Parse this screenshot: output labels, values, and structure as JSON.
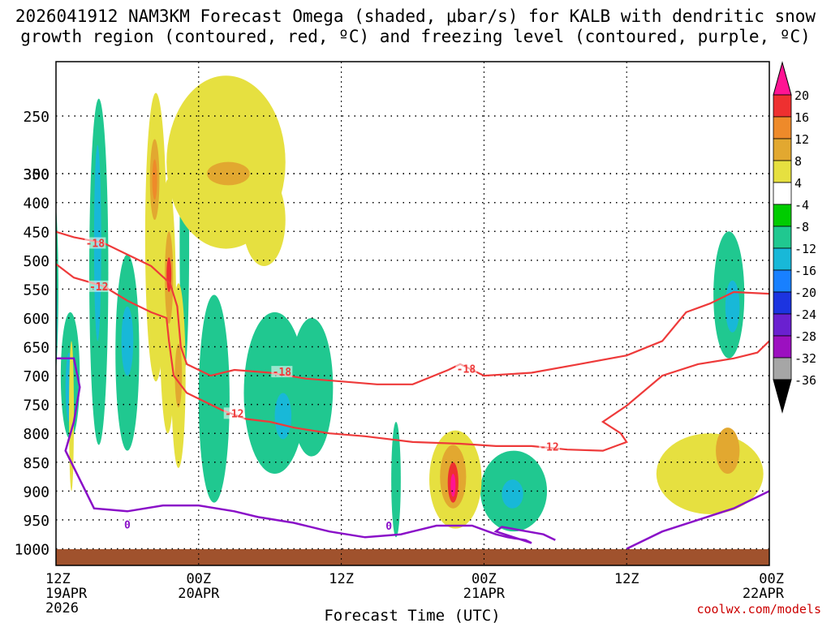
{
  "header": {
    "title_line1": "2026041912 NAM3KM Forecast Omega (shaded, μbar/s) for KALB with dendritic snow",
    "title_line2": "growth region (contoured, red, ºC) and freezing level (contoured, purple, ºC)"
  },
  "credit": "coolwx.com/models",
  "chart_data": {
    "type": "heatmap",
    "title": "2026041912 NAM3KM Forecast Omega (shaded, μbar/s) for KALB with dendritic snow growth region (contoured, red, ºC) and freezing level (contoured, purple, ºC)",
    "xlabel": "Forecast Time (UTC)",
    "ylabel": "",
    "x_ticks": [
      {
        "label": "12Z",
        "sub": "19APR",
        "sub2": "2026",
        "hours": 0
      },
      {
        "label": "00Z",
        "sub": "20APR",
        "sub2": "",
        "hours": 12
      },
      {
        "label": "12Z",
        "sub": "",
        "sub2": "",
        "hours": 24
      },
      {
        "label": "00Z",
        "sub": "21APR",
        "sub2": "",
        "hours": 36
      },
      {
        "label": "12Z",
        "sub": "",
        "sub2": "",
        "hours": 48
      },
      {
        "label": "00Z",
        "sub": "22APR",
        "sub2": "",
        "hours": 60
      }
    ],
    "y_ticks": [
      250,
      300,
      350,
      400,
      450,
      500,
      550,
      600,
      650,
      700,
      750,
      800,
      850,
      900,
      950,
      1000
    ],
    "grid": true,
    "colorbar": {
      "labels": [
        "20",
        "16",
        "12",
        "8",
        "4",
        "-4",
        "-8",
        "-12",
        "-16",
        "-20",
        "-24",
        "-28",
        "-32",
        "-36"
      ],
      "colors": [
        "#ff1493",
        "#ee3030",
        "#ee8a2a",
        "#e2a830",
        "#e6e040",
        "#ffffff",
        "#00cc00",
        "#20c890",
        "#18b8d8",
        "#1880ff",
        "#1c34e0",
        "#6a20d0",
        "#9c10c0",
        "#a6a6a6",
        "#000000"
      ]
    },
    "contour_labels": {
      "dgz": [
        "-18",
        "-12",
        "-18",
        "-12",
        "-18",
        "-12"
      ],
      "freezing": [
        "0",
        "0"
      ]
    },
    "regions": [
      {
        "level": 7,
        "center": [
          -0.3,
          550
        ],
        "radius": [
          0.5,
          180
        ]
      },
      {
        "level": 8,
        "center": [
          -0.2,
          600
        ],
        "radius": [
          0.3,
          120
        ]
      },
      {
        "level": 7,
        "center": [
          1.2,
          700
        ],
        "radius": [
          0.8,
          110
        ]
      },
      {
        "level": 8,
        "center": [
          1.1,
          720
        ],
        "radius": [
          0.3,
          60
        ]
      },
      {
        "level": 4,
        "center": [
          1.3,
          770
        ],
        "radius": [
          0.2,
          130
        ]
      },
      {
        "level": 7,
        "center": [
          3.6,
          520
        ],
        "radius": [
          0.8,
          300
        ]
      },
      {
        "level": 8,
        "center": [
          3.5,
          470
        ],
        "radius": [
          0.3,
          170
        ]
      },
      {
        "level": 7,
        "center": [
          6.0,
          660
        ],
        "radius": [
          1.0,
          170
        ]
      },
      {
        "level": 8,
        "center": [
          6.0,
          640
        ],
        "radius": [
          0.5,
          60
        ]
      },
      {
        "level": 4,
        "center": [
          8.4,
          460
        ],
        "radius": [
          0.9,
          250
        ]
      },
      {
        "level": 3,
        "center": [
          8.3,
          360
        ],
        "radius": [
          0.4,
          70
        ]
      },
      {
        "level": 2,
        "center": [
          8.3,
          360
        ],
        "radius": [
          0.2,
          35
        ]
      },
      {
        "level": 4,
        "center": [
          9.4,
          580
        ],
        "radius": [
          0.7,
          220
        ]
      },
      {
        "level": 3,
        "center": [
          9.5,
          530
        ],
        "radius": [
          0.35,
          80
        ]
      },
      {
        "level": 1,
        "center": [
          9.5,
          525
        ],
        "radius": [
          0.18,
          30
        ]
      },
      {
        "level": 4,
        "center": [
          10.3,
          700
        ],
        "radius": [
          0.6,
          160
        ]
      },
      {
        "level": 3,
        "center": [
          10.3,
          700
        ],
        "radius": [
          0.3,
          55
        ]
      },
      {
        "level": 7,
        "center": [
          10.8,
          470
        ],
        "radius": [
          0.4,
          220
        ]
      },
      {
        "level": 4,
        "center": [
          14.3,
          330
        ],
        "radius": [
          5.0,
          150
        ]
      },
      {
        "level": 3,
        "center": [
          14.5,
          300
        ],
        "radius": [
          1.8,
          70
        ]
      },
      {
        "level": 4,
        "center": [
          17.5,
          430
        ],
        "radius": [
          1.8,
          80
        ]
      },
      {
        "level": 7,
        "center": [
          13.3,
          740
        ],
        "radius": [
          1.3,
          180
        ]
      },
      {
        "level": 7,
        "center": [
          18.4,
          730
        ],
        "radius": [
          2.6,
          140
        ]
      },
      {
        "level": 8,
        "center": [
          19.1,
          770
        ],
        "radius": [
          0.7,
          40
        ]
      },
      {
        "level": 7,
        "center": [
          21.5,
          720
        ],
        "radius": [
          1.8,
          120
        ]
      },
      {
        "level": 7,
        "center": [
          28.6,
          880
        ],
        "radius": [
          0.4,
          100
        ]
      },
      {
        "level": 4,
        "center": [
          33.6,
          880
        ],
        "radius": [
          2.2,
          85
        ]
      },
      {
        "level": 3,
        "center": [
          33.4,
          875
        ],
        "radius": [
          1.1,
          55
        ]
      },
      {
        "level": 1,
        "center": [
          33.4,
          885
        ],
        "radius": [
          0.45,
          35
        ]
      },
      {
        "level": 0,
        "center": [
          33.4,
          890
        ],
        "radius": [
          0.15,
          20
        ]
      },
      {
        "level": 7,
        "center": [
          38.5,
          900
        ],
        "radius": [
          2.8,
          70
        ]
      },
      {
        "level": 8,
        "center": [
          38.4,
          905
        ],
        "radius": [
          0.9,
          25
        ]
      },
      {
        "level": 4,
        "center": [
          55.0,
          870
        ],
        "radius": [
          4.5,
          70
        ]
      },
      {
        "level": 3,
        "center": [
          56.5,
          830
        ],
        "radius": [
          1.0,
          40
        ]
      },
      {
        "level": 7,
        "center": [
          56.6,
          560
        ],
        "radius": [
          1.3,
          110
        ]
      },
      {
        "level": 8,
        "center": [
          56.9,
          580
        ],
        "radius": [
          0.6,
          45
        ]
      }
    ],
    "dgz_lines": [
      [
        [
          -0.1,
          450
        ],
        [
          1.5,
          460
        ],
        [
          4,
          470
        ],
        [
          6,
          490
        ],
        [
          8,
          510
        ],
        [
          9.6,
          540
        ],
        [
          10.2,
          580
        ],
        [
          10.5,
          650
        ],
        [
          11,
          680
        ],
        [
          13,
          700
        ],
        [
          15,
          690
        ],
        [
          18,
          695
        ],
        [
          21,
          705
        ],
        [
          24,
          710
        ],
        [
          27,
          715
        ],
        [
          30,
          715
        ],
        [
          33,
          690
        ],
        [
          34,
          680
        ],
        [
          36,
          700
        ],
        [
          40,
          695
        ],
        [
          44,
          680
        ],
        [
          48,
          665
        ],
        [
          51,
          640
        ],
        [
          53,
          590
        ],
        [
          55,
          575
        ],
        [
          57,
          555
        ],
        [
          60,
          558
        ]
      ],
      [
        [
          -0.1,
          505
        ],
        [
          1.5,
          530
        ],
        [
          4,
          545
        ],
        [
          6,
          570
        ],
        [
          8,
          590
        ],
        [
          9.3,
          600
        ],
        [
          9.5,
          640
        ],
        [
          9.9,
          700
        ],
        [
          11,
          730
        ],
        [
          14,
          760
        ],
        [
          16,
          775
        ],
        [
          18,
          780
        ],
        [
          20,
          790
        ],
        [
          23,
          800
        ],
        [
          26,
          805
        ],
        [
          30,
          815
        ],
        [
          34,
          818
        ],
        [
          37,
          822
        ],
        [
          40,
          822
        ],
        [
          43,
          828
        ],
        [
          46,
          830
        ],
        [
          48,
          815
        ],
        [
          47.5,
          800
        ],
        [
          46,
          780
        ],
        [
          48,
          752
        ],
        [
          51,
          700
        ],
        [
          54,
          680
        ],
        [
          57,
          670
        ],
        [
          59,
          660
        ],
        [
          60,
          640
        ]
      ]
    ],
    "freezing_lines": [
      [
        [
          -0.1,
          670
        ],
        [
          1.5,
          670
        ],
        [
          2.0,
          720
        ],
        [
          1.5,
          780
        ],
        [
          0.8,
          830
        ],
        [
          2.0,
          880
        ],
        [
          3.2,
          930
        ],
        [
          6,
          935
        ],
        [
          9,
          925
        ],
        [
          12,
          925
        ],
        [
          15,
          935
        ],
        [
          17,
          945
        ],
        [
          20,
          955
        ],
        [
          23,
          970
        ],
        [
          26,
          980
        ],
        [
          29,
          975
        ],
        [
          32,
          960
        ],
        [
          35,
          960
        ],
        [
          37,
          975
        ],
        [
          38,
          980
        ],
        [
          39.5,
          985
        ],
        [
          40,
          990
        ],
        [
          37,
          970
        ],
        [
          37.5,
          962
        ],
        [
          41,
          975
        ],
        [
          42,
          985
        ]
      ],
      [
        [
          48,
          1000
        ],
        [
          51,
          970
        ],
        [
          54,
          950
        ],
        [
          57,
          930
        ],
        [
          60,
          900
        ]
      ]
    ],
    "contour_label_positions": [
      {
        "line": "dgz0",
        "hours": 3.3,
        "p": 470,
        "label": "dgz.0"
      },
      {
        "line": "dgz1",
        "hours": 3.6,
        "p": 545,
        "label": "dgz.1"
      },
      {
        "line": "dgz0",
        "hours": 19.0,
        "p": 693,
        "label": "dgz.2"
      },
      {
        "line": "dgz1",
        "hours": 15.0,
        "p": 765,
        "label": "dgz.3"
      },
      {
        "line": "dgz0",
        "hours": 34.5,
        "p": 688,
        "label": "dgz.4"
      },
      {
        "line": "dgz1",
        "hours": 41.5,
        "p": 823,
        "label": "dgz.5"
      },
      {
        "line": "fz0",
        "hours": 6.0,
        "p": 958,
        "label": "freezing.0"
      },
      {
        "line": "fz0",
        "hours": 28.0,
        "p": 960,
        "label": "freezing.1"
      }
    ]
  }
}
